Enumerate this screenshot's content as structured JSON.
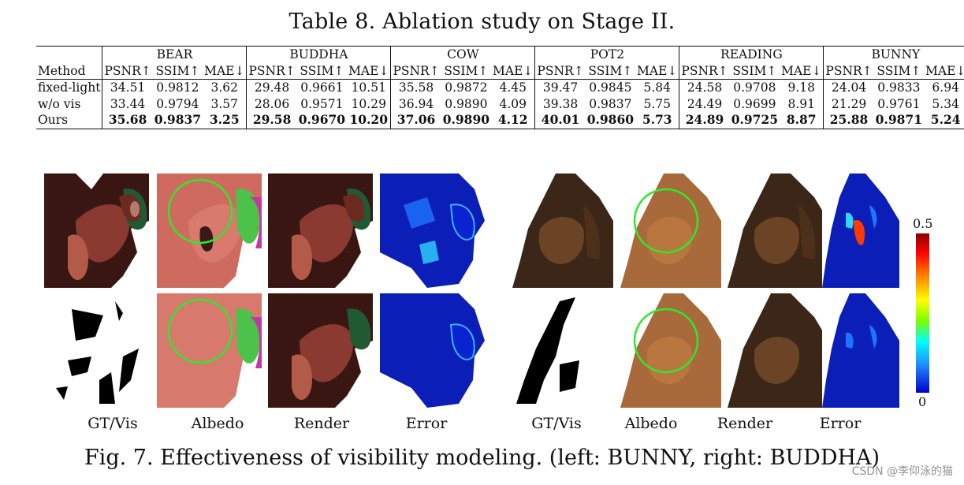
{
  "table": {
    "caption": "Table 8. Ablation study on Stage II.",
    "header_method": "Method",
    "groups": [
      "BEAR",
      "BUDDHA",
      "COW",
      "POT2",
      "READING",
      "BUNNY"
    ],
    "metrics": [
      "PSNR↑",
      "SSIM↑",
      "MAE↓"
    ],
    "rows": [
      {
        "method": "fixed-light",
        "values": [
          "34.51",
          "0.9812",
          "3.62",
          "29.48",
          "0.9661",
          "10.51",
          "35.58",
          "0.9872",
          "4.45",
          "39.47",
          "0.9845",
          "5.84",
          "24.58",
          "0.9708",
          "9.18",
          "24.04",
          "0.9833",
          "6.94"
        ]
      },
      {
        "method": "w/o vis",
        "values": [
          "33.44",
          "0.9794",
          "3.57",
          "28.06",
          "0.9571",
          "10.29",
          "36.94",
          "0.9890",
          "4.09",
          "39.38",
          "0.9837",
          "5.75",
          "24.49",
          "0.9699",
          "8.91",
          "21.29",
          "0.9761",
          "5.34"
        ]
      },
      {
        "method": "Ours",
        "values": [
          "35.68",
          "0.9837",
          "3.25",
          "29.58",
          "0.9670",
          "10.20",
          "37.06",
          "0.9890",
          "4.12",
          "40.01",
          "0.9860",
          "5.73",
          "24.89",
          "0.9725",
          "8.87",
          "25.88",
          "0.9871",
          "5.24"
        ]
      }
    ]
  },
  "figure": {
    "col_labels": [
      "GT/Vis",
      "Albedo",
      "Render",
      "Error",
      "GT/Vis",
      "Albedo",
      "Render",
      "Error"
    ],
    "colorbar_max": "0.5",
    "colorbar_min": "0",
    "caption": "Fig. 7. Effectiveness of visibility modeling. (left: BUNNY, right: BUDDHA)",
    "watermark": "CSDN @李仰泳的猫"
  }
}
